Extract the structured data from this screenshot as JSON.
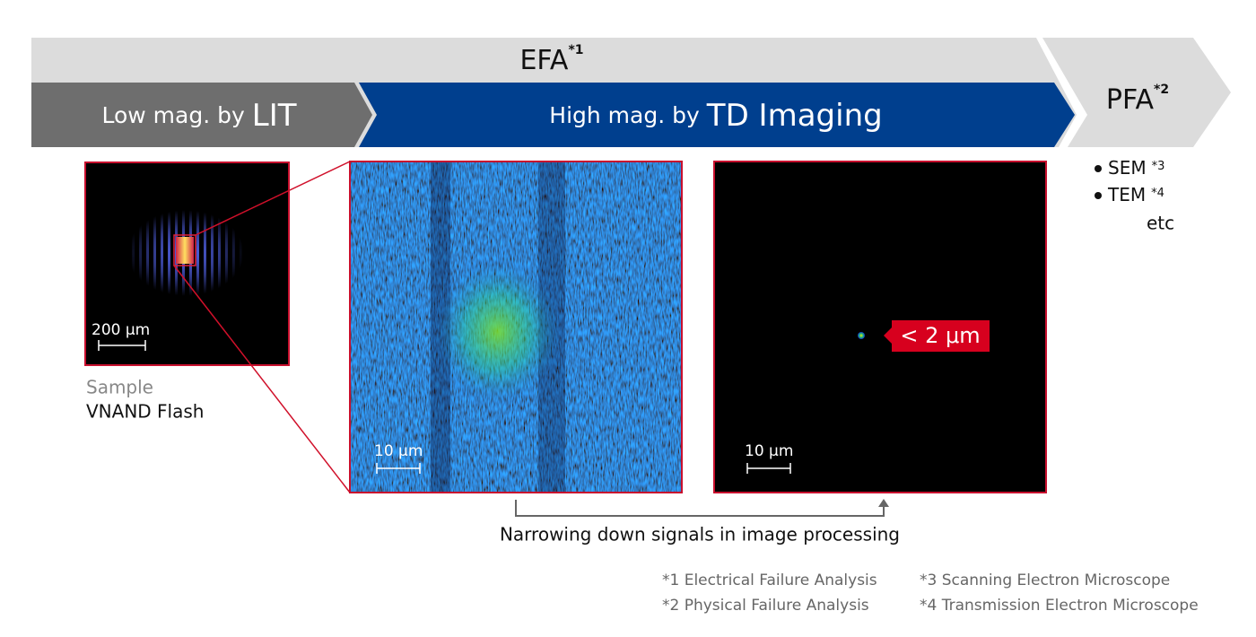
{
  "banner": {
    "efa": {
      "label": "EFA",
      "note": "*1"
    },
    "low": {
      "prefix": "Low mag. by",
      "emphasis": "LIT"
    },
    "high": {
      "prefix": "High mag. by",
      "emphasis": "TD Imaging"
    },
    "pfa": {
      "label": "PFA",
      "note": "*2"
    }
  },
  "pfa_methods": [
    {
      "label": "SEM",
      "note": "*3"
    },
    {
      "label": "TEM",
      "note": "*4"
    }
  ],
  "pfa_more": "etc",
  "panels": [
    {
      "scale": "200 μm"
    },
    {
      "scale": "10 μm"
    },
    {
      "scale": "10 μm",
      "callout": "< 2 μm"
    }
  ],
  "sample": {
    "label": "Sample",
    "name": "VNAND Flash"
  },
  "caption": "Narrowing down signals in image processing",
  "footnotes": [
    "*1 Electrical Failure Analysis",
    "*2 Physical Failure Analysis",
    "*3 Scanning Electron Microscope",
    "*4 Transmission Electron Microscope"
  ]
}
